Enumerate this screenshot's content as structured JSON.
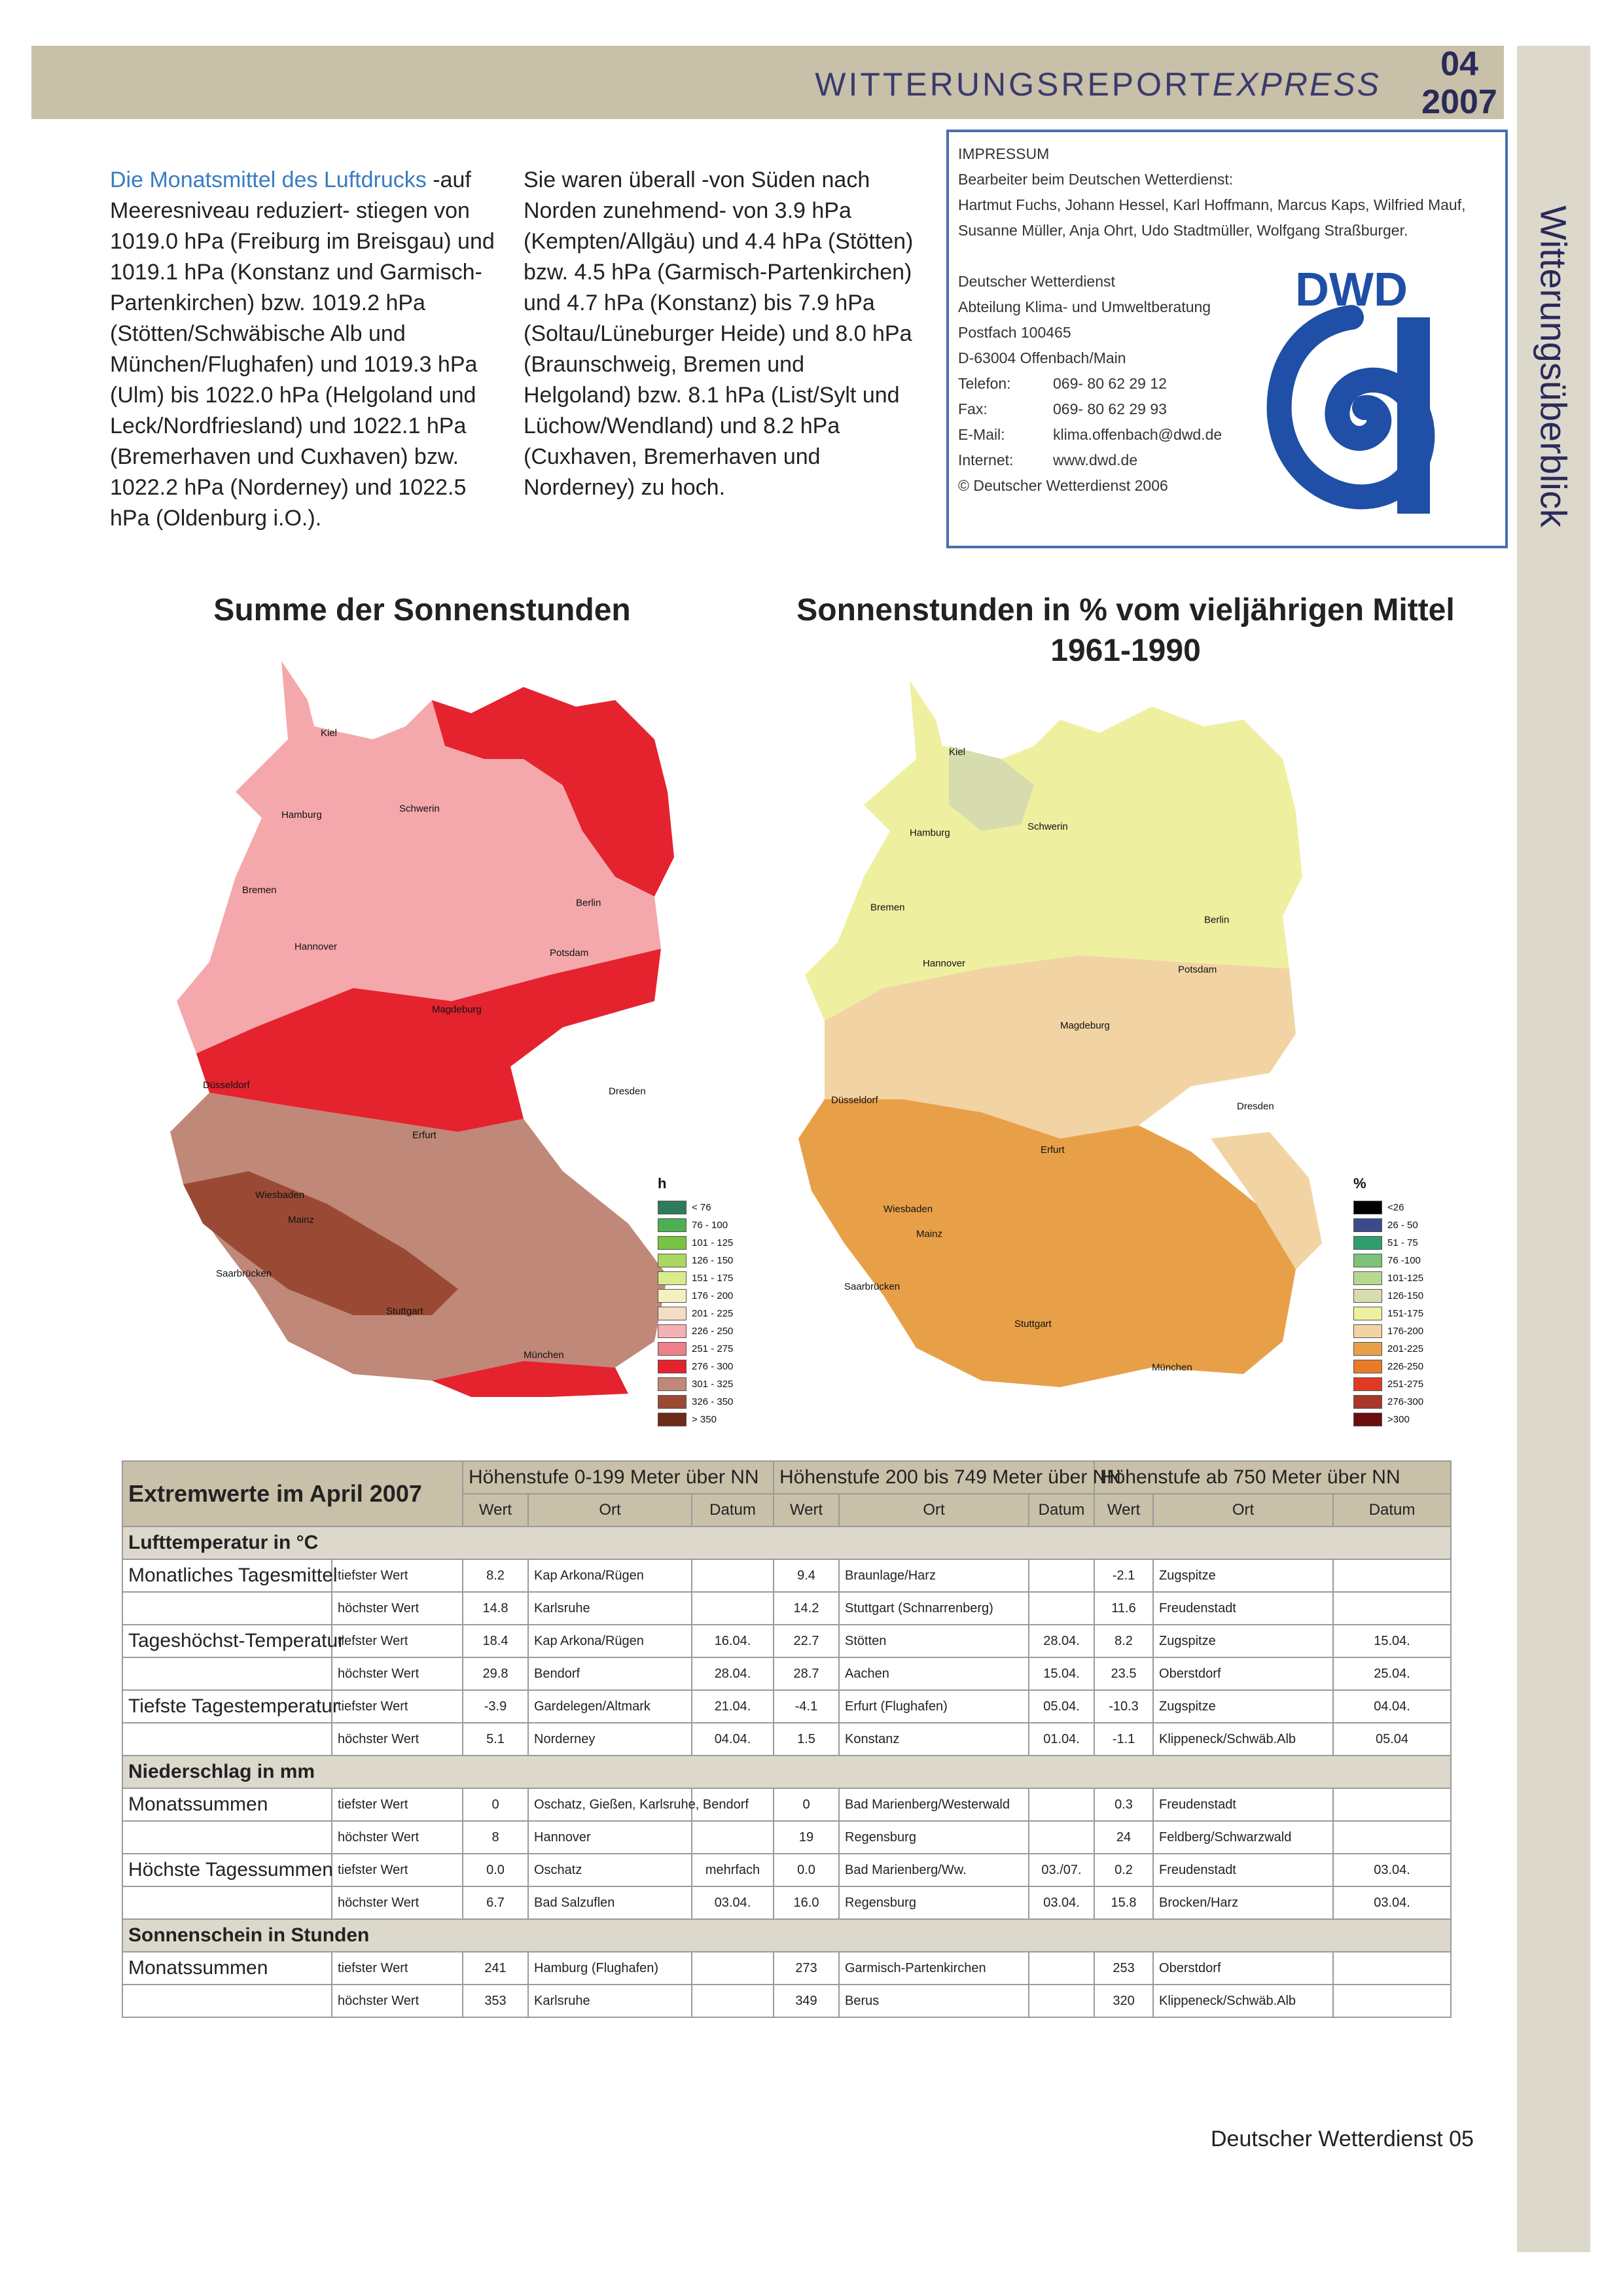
{
  "header": {
    "title_main": "WITTERUNGSREPORT",
    "title_express": "EXPRESS",
    "issue_number": "04",
    "issue_year": "2007",
    "side_title": "Witterungsüberblick"
  },
  "text": {
    "col1_lead": "Die Monatsmittel des Luftdrucks",
    "col1_rest": " -auf Meeresniveau reduziert- stiegen von 1019.0 hPa (Freiburg im Breisgau) und 1019.1 hPa (Konstanz und Garmisch-Partenkirchen) bzw. 1019.2 hPa (Stötten/Schwäbische Alb und München/Flughafen) und 1019.3 hPa (Ulm) bis 1022.0 hPa (Helgoland und Leck/Nordfriesland) und 1022.1 hPa (Bremerhaven und Cuxhaven) bzw. 1022.2 hPa (Norderney) und 1022.5 hPa (Oldenburg i.O.).",
    "col2": "Sie waren überall -von Süden nach Norden zunehmend- von 3.9 hPa (Kempten/Allgäu) und 4.4 hPa (Stötten) bzw. 4.5 hPa (Garmisch-Partenkirchen) und 4.7 hPa (Konstanz) bis 7.9 hPa (Soltau/Lüneburger Heide) und 8.0 hPa (Braunschweig, Bremen und Helgoland) bzw. 8.1 hPa (List/Sylt und Lüchow/Wendland) und 8.2 hPa (Cuxhaven, Bremerhaven und Norderney) zu hoch."
  },
  "impressum": {
    "heading": "IMPRESSUM",
    "editors_label": "Bearbeiter beim Deutschen Wetterdienst:",
    "editors_line1": "Hartmut Fuchs, Johann Hessel, Karl Hoffmann, Marcus Kaps, Wilfried Mauf,",
    "editors_line2": "Susanne Müller, Anja Ohrt, Udo Stadtmüller, Wolfgang Straßburger.",
    "org": "Deutscher Wetterdienst",
    "dept": "Abteilung Klima- und Umweltberatung",
    "postbox": "Postfach 100465",
    "city": "D-63004 Offenbach/Main",
    "phone_label": "Telefon:",
    "phone": "069- 80 62 29 12",
    "fax_label": "Fax:",
    "fax": "069- 80 62 29 93",
    "email_label": "E-Mail:",
    "email": "klima.offenbach@dwd.de",
    "internet_label": "Internet:",
    "internet": "www.dwd.de",
    "copyright": "© Deutscher Wetterdienst 2006",
    "logo_text": "DWD"
  },
  "maps": {
    "left_title": "Summe der Sonnenstunden",
    "right_title_line1": "Sonnenstunden in % vom vieljährigen Mittel",
    "right_title_line2": "1961-1990",
    "cities": [
      "Kiel",
      "Hamburg",
      "Schwerin",
      "Bremen",
      "Berlin",
      "Hannover",
      "Potsdam",
      "Magdeburg",
      "Düsseldorf",
      "Dresden",
      "Erfurt",
      "Wiesbaden",
      "Mainz",
      "Saarbrücken",
      "Stuttgart",
      "München"
    ],
    "legend_left_title": "h",
    "legend_left": [
      {
        "label": "< 76",
        "color": "#2e7d5a"
      },
      {
        "label": "76 - 100",
        "color": "#4caf50"
      },
      {
        "label": "101 - 125",
        "color": "#7cc242"
      },
      {
        "label": "126 - 150",
        "color": "#a8d860"
      },
      {
        "label": "151 - 175",
        "color": "#d8ec8c"
      },
      {
        "label": "176 - 200",
        "color": "#f4f0c0"
      },
      {
        "label": "201 - 225",
        "color": "#f6dcc4"
      },
      {
        "label": "226 - 250",
        "color": "#f4b0b4"
      },
      {
        "label": "251 - 275",
        "color": "#ee7e88"
      },
      {
        "label": "276 - 300",
        "color": "#e4232e"
      },
      {
        "label": "301 - 325",
        "color": "#c08878"
      },
      {
        "label": "326 - 350",
        "color": "#9a4a34"
      },
      {
        "label": "> 350",
        "color": "#6e2a1a"
      }
    ],
    "legend_right_title": "%",
    "legend_right": [
      {
        "label": "<26",
        "color": "#000000"
      },
      {
        "label": "26 - 50",
        "color": "#3a4a8c"
      },
      {
        "label": "51 - 75",
        "color": "#2e9e6e"
      },
      {
        "label": "76 -100",
        "color": "#7cc27a"
      },
      {
        "label": "101-125",
        "color": "#b8d890"
      },
      {
        "label": "126-150",
        "color": "#d6dcae"
      },
      {
        "label": "151-175",
        "color": "#eef0a0"
      },
      {
        "label": "176-200",
        "color": "#f2d4a4"
      },
      {
        "label": "201-225",
        "color": "#e8a048"
      },
      {
        "label": "226-250",
        "color": "#e87a2a"
      },
      {
        "label": "251-275",
        "color": "#e03a26"
      },
      {
        "label": "276-300",
        "color": "#a8362a"
      },
      {
        "label": ">300",
        "color": "#6a0e0e"
      }
    ]
  },
  "table": {
    "title": "Extremwerte im April 2007",
    "groups": [
      "Höhenstufe 0-199 Meter über NN",
      "Höhenstufe 200 bis 749 Meter über NN",
      "Höhenstufe ab 750 Meter über NN"
    ],
    "subheaders": [
      "Wert",
      "Ort",
      "Datum"
    ],
    "sections": [
      {
        "title": "Lufttemperatur in °C",
        "rows": [
          {
            "param": "Monatliches Tagesmittel",
            "type": "tiefster Wert",
            "g1": [
              "8.2",
              "Kap Arkona/Rügen",
              ""
            ],
            "g2": [
              "9.4",
              "Braunlage/Harz",
              ""
            ],
            "g3": [
              "-2.1",
              "Zugspitze",
              ""
            ]
          },
          {
            "param": "",
            "type": "höchster Wert",
            "g1": [
              "14.8",
              "Karlsruhe",
              ""
            ],
            "g2": [
              "14.2",
              "Stuttgart (Schnarrenberg)",
              ""
            ],
            "g3": [
              "11.6",
              "Freudenstadt",
              ""
            ]
          },
          {
            "param": "Tageshöchst-Temperatur",
            "type": "tiefster Wert",
            "g1": [
              "18.4",
              "Kap Arkona/Rügen",
              "16.04."
            ],
            "g2": [
              "22.7",
              "Stötten",
              "28.04."
            ],
            "g3": [
              "8.2",
              "Zugspitze",
              "15.04."
            ]
          },
          {
            "param": "",
            "type": "höchster Wert",
            "g1": [
              "29.8",
              "Bendorf",
              "28.04."
            ],
            "g2": [
              "28.7",
              "Aachen",
              "15.04."
            ],
            "g3": [
              "23.5",
              "Oberstdorf",
              "25.04."
            ]
          },
          {
            "param": "Tiefste Tagestemperatur",
            "type": "tiefster Wert",
            "g1": [
              "-3.9",
              "Gardelegen/Altmark",
              "21.04."
            ],
            "g2": [
              "-4.1",
              "Erfurt (Flughafen)",
              "05.04."
            ],
            "g3": [
              "-10.3",
              "Zugspitze",
              "04.04."
            ]
          },
          {
            "param": "",
            "type": "höchster Wert",
            "g1": [
              "5.1",
              "Norderney",
              "04.04."
            ],
            "g2": [
              "1.5",
              "Konstanz",
              "01.04."
            ],
            "g3": [
              "-1.1",
              "Klippeneck/Schwäb.Alb",
              "05.04"
            ]
          }
        ]
      },
      {
        "title": "Niederschlag in mm",
        "rows": [
          {
            "param": "Monatssummen",
            "type": "tiefster Wert",
            "g1": [
              "0",
              "Oschatz, Gießen, Karlsruhe, Bendorf",
              ""
            ],
            "g2": [
              "0",
              "Bad Marienberg/Westerwald",
              ""
            ],
            "g3": [
              "0.3",
              "Freudenstadt",
              ""
            ]
          },
          {
            "param": "",
            "type": "höchster Wert",
            "g1": [
              "8",
              "Hannover",
              ""
            ],
            "g2": [
              "19",
              "Regensburg",
              ""
            ],
            "g3": [
              "24",
              "Feldberg/Schwarzwald",
              ""
            ]
          },
          {
            "param": "Höchste Tagessummen",
            "type": "tiefster Wert",
            "g1": [
              "0.0",
              "Oschatz",
              "mehrfach"
            ],
            "g2": [
              "0.0",
              "Bad Marienberg/Ww.",
              "03./07."
            ],
            "g3": [
              "0.2",
              "Freudenstadt",
              "03.04."
            ]
          },
          {
            "param": "",
            "type": "höchster Wert",
            "g1": [
              "6.7",
              "Bad Salzuflen",
              "03.04."
            ],
            "g2": [
              "16.0",
              "Regensburg",
              "03.04."
            ],
            "g3": [
              "15.8",
              "Brocken/Harz",
              "03.04."
            ]
          }
        ]
      },
      {
        "title": "Sonnenschein in Stunden",
        "rows": [
          {
            "param": "Monatssummen",
            "type": "tiefster Wert",
            "g1": [
              "241",
              "Hamburg (Flughafen)",
              ""
            ],
            "g2": [
              "273",
              "Garmisch-Partenkirchen",
              ""
            ],
            "g3": [
              "253",
              "Oberstdorf",
              ""
            ]
          },
          {
            "param": "",
            "type": "höchster Wert",
            "g1": [
              "353",
              "Karlsruhe",
              ""
            ],
            "g2": [
              "349",
              "Berus",
              ""
            ],
            "g3": [
              "320",
              "Klippeneck/Schwäb.Alb",
              ""
            ]
          }
        ]
      }
    ]
  },
  "footer": {
    "text": "Deutscher Wetterdienst  05"
  }
}
